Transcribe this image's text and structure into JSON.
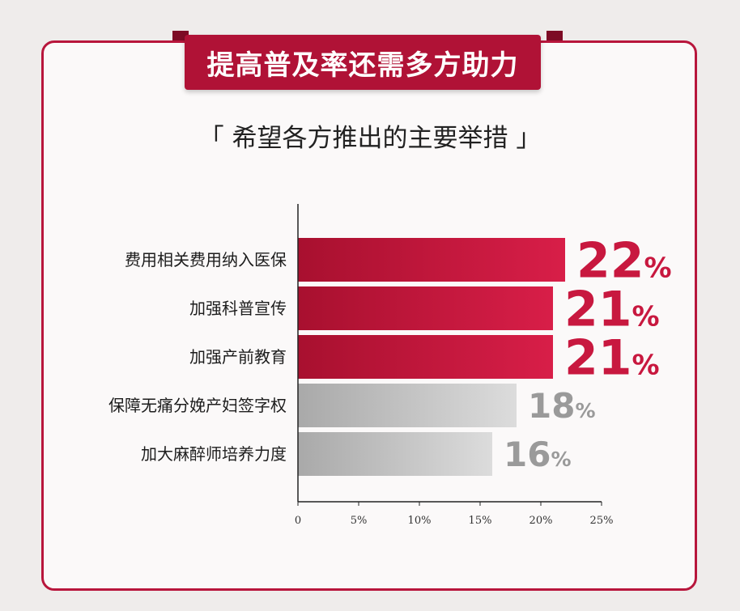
{
  "banner_title": "提高普及率还需多方助力",
  "subtitle": "「 希望各方推出的主要举措 」",
  "colors": {
    "accent": "#b8163c",
    "highlight_bar": "#c8183f",
    "muted_bar": "#c9c9c9",
    "muted_text": "#9a9a9a"
  },
  "chart_data": {
    "type": "bar",
    "orientation": "horizontal",
    "categories": [
      "费用相关费用纳入医保",
      "加强科普宣传",
      "加强产前教育",
      "保障无痛分娩产妇签字权",
      "加大麻醉师培养力度"
    ],
    "values": [
      22,
      21,
      21,
      18,
      16
    ],
    "value_labels": [
      "22%",
      "21%",
      "21%",
      "18%",
      "16%"
    ],
    "highlighted": [
      true,
      true,
      true,
      false,
      false
    ],
    "x_ticks": [
      "0",
      "5%",
      "10%",
      "15%",
      "20%",
      "25%"
    ],
    "xlim": [
      0,
      25
    ],
    "grid": false
  }
}
